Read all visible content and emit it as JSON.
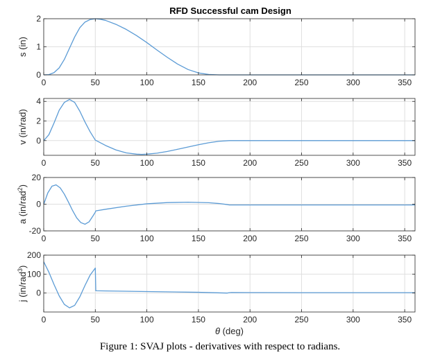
{
  "caption": "Figure 1: SVAJ plots - derivatives with respect to radians.",
  "chart_data": [
    {
      "type": "line",
      "title": "RFD Successful cam Design",
      "ylabel": "s (in)",
      "xlabel": "",
      "xlim": [
        0,
        360
      ],
      "ylim": [
        0,
        2
      ],
      "xticks": [
        0,
        50,
        100,
        150,
        200,
        250,
        300,
        350
      ],
      "yticks": [
        0,
        1,
        2
      ],
      "grid": true,
      "line_color": "#5B9BD5",
      "series": [
        {
          "x": [
            0,
            5,
            10,
            15,
            20,
            25,
            30,
            35,
            40,
            45,
            50,
            55,
            60,
            70,
            80,
            90,
            100,
            110,
            120,
            130,
            140,
            150,
            160,
            170,
            180,
            200,
            250,
            300,
            360
          ],
          "values": [
            0,
            0.01,
            0.08,
            0.25,
            0.55,
            0.95,
            1.35,
            1.68,
            1.88,
            1.97,
            2.0,
            1.98,
            1.94,
            1.8,
            1.62,
            1.4,
            1.15,
            0.88,
            0.62,
            0.38,
            0.19,
            0.07,
            0.015,
            0.0,
            0,
            0,
            0,
            0,
            0
          ]
        }
      ]
    },
    {
      "type": "line",
      "ylabel": "v (in/rad)",
      "xlabel": "",
      "xlim": [
        0,
        360
      ],
      "ylim": [
        -1.5,
        4.3
      ],
      "xticks": [
        0,
        50,
        100,
        150,
        200,
        250,
        300,
        350
      ],
      "yticks": [
        0,
        2,
        4
      ],
      "grid": true,
      "line_color": "#5B9BD5",
      "series": [
        {
          "x": [
            0,
            5,
            10,
            15,
            20,
            25,
            30,
            35,
            40,
            45,
            50,
            60,
            70,
            80,
            90,
            95,
            100,
            110,
            120,
            130,
            140,
            150,
            160,
            170,
            180,
            200,
            250,
            300,
            360
          ],
          "values": [
            0,
            0.6,
            1.8,
            3.1,
            3.9,
            4.2,
            3.9,
            3.0,
            1.9,
            0.9,
            0.05,
            -0.5,
            -0.95,
            -1.25,
            -1.38,
            -1.4,
            -1.38,
            -1.28,
            -1.1,
            -0.88,
            -0.65,
            -0.42,
            -0.22,
            -0.07,
            0,
            0,
            0,
            0,
            0
          ]
        }
      ]
    },
    {
      "type": "line",
      "ylabel": "a (in/rad²)",
      "ylabel_base": "a (in/rad",
      "ylabel_sup": "2",
      "ylabel_end": ")",
      "xlabel": "",
      "xlim": [
        0,
        360
      ],
      "ylim": [
        -20,
        20
      ],
      "xticks": [
        0,
        50,
        100,
        150,
        200,
        250,
        300,
        350
      ],
      "yticks": [
        -20,
        0,
        20
      ],
      "grid": true,
      "line_color": "#5B9BD5",
      "series": [
        {
          "x": [
            0,
            4,
            8,
            12,
            16,
            20,
            24,
            28,
            32,
            36,
            40,
            44,
            48,
            50,
            50.5,
            60,
            80,
            100,
            120,
            140,
            160,
            170,
            178,
            180,
            200,
            250,
            300,
            360
          ],
          "values": [
            0,
            8.5,
            13.5,
            14.5,
            12.2,
            7.5,
            1.5,
            -4.8,
            -10.3,
            -13.8,
            -15.0,
            -13.2,
            -8.5,
            -6.0,
            -5.0,
            -3.8,
            -1.5,
            0.3,
            1.2,
            1.5,
            1.1,
            0.5,
            -0.3,
            -0.6,
            -0.6,
            -0.6,
            -0.6,
            -0.6
          ]
        }
      ]
    },
    {
      "type": "line",
      "ylabel": "j (in/rad³)",
      "ylabel_base": "j (in/rad",
      "ylabel_sup": "3",
      "ylabel_end": ")",
      "xlabel": "θ (deg)",
      "xlabel_sym": "θ",
      "xlabel_rest": " (deg)",
      "xlim": [
        0,
        360
      ],
      "ylim": [
        -100,
        200
      ],
      "xticks": [
        0,
        50,
        100,
        150,
        200,
        250,
        300,
        350
      ],
      "yticks": [
        0,
        100,
        200
      ],
      "grid": true,
      "line_color": "#5B9BD5",
      "series": [
        {
          "x": [
            0,
            5,
            10,
            15,
            20,
            25,
            30,
            35,
            40,
            45,
            50,
            50.5,
            60,
            100,
            150,
            178,
            180,
            182,
            200,
            250,
            300,
            360
          ],
          "values": [
            165,
            110,
            45,
            -15,
            -60,
            -78,
            -65,
            -20,
            40,
            95,
            132,
            12,
            11,
            8,
            4,
            0,
            2,
            3,
            2.5,
            2,
            2,
            2
          ]
        }
      ]
    }
  ]
}
